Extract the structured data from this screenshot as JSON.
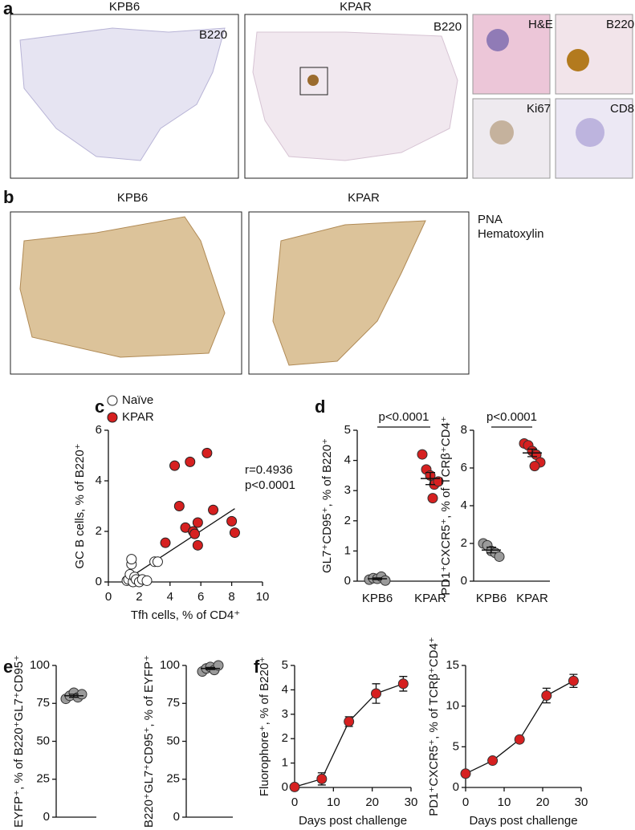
{
  "panel_labels": [
    "a",
    "b",
    "c",
    "d",
    "e",
    "f"
  ],
  "panel_a": {
    "titles": [
      "KPB6",
      "KPAR"
    ],
    "stains": [
      "B220",
      "B220"
    ],
    "insets": [
      "H&E",
      "B220",
      "Ki67",
      "CD8"
    ]
  },
  "panel_b": {
    "titles": [
      "KPB6",
      "KPAR"
    ],
    "legend": [
      {
        "text": "PNA",
        "color": "#8b4a1c"
      },
      {
        "text": "Hematoxylin",
        "color": "#4a5fc1"
      }
    ]
  },
  "chart_data": [
    {
      "type": "scatter",
      "xlabel": "Tfh cells, % of CD4⁺",
      "ylabel": "GC B cells, % of B220⁺",
      "xlim": [
        0,
        10
      ],
      "xticks": [
        0,
        2,
        4,
        6,
        8,
        10
      ],
      "ylim": [
        0,
        6
      ],
      "yticks": [
        0,
        2,
        4,
        6
      ],
      "annotations": [
        "r=0.4936",
        "p<0.0001"
      ],
      "trend_line": {
        "x": [
          1.2,
          8.2
        ],
        "y": [
          0.1,
          2.9
        ]
      },
      "series": [
        {
          "name": "Naïve",
          "color": "#ffffff",
          "x": [
            1.2,
            1.3,
            1.4,
            1.5,
            1.5,
            1.6,
            1.7,
            1.8,
            2.0,
            2.2,
            2.5,
            3.0,
            3.2
          ],
          "values": [
            0.05,
            0.1,
            0.3,
            0.7,
            0.9,
            0.0,
            0.2,
            0.1,
            0.0,
            0.1,
            0.05,
            0.8,
            0.8
          ]
        },
        {
          "name": "KPAR",
          "color": "#d62020",
          "x": [
            3.7,
            4.3,
            4.6,
            5.0,
            5.3,
            5.5,
            5.6,
            5.8,
            5.8,
            6.4,
            6.8,
            8.0,
            8.2
          ],
          "values": [
            1.55,
            4.6,
            3.0,
            2.15,
            4.75,
            2.0,
            1.9,
            2.35,
            1.45,
            5.1,
            2.85,
            2.4,
            1.95
          ]
        }
      ]
    },
    {
      "type": "dot",
      "ylabel": "GL7⁺CD95⁺, % of B220⁺",
      "ylim": [
        0,
        5
      ],
      "yticks": [
        0,
        1,
        2,
        3,
        4,
        5
      ],
      "annotation": "p<0.0001",
      "groups": [
        {
          "name": "KPB6",
          "color": "#9a9a9a",
          "values": [
            0.05,
            0.1,
            0.08,
            0.15,
            0.02
          ],
          "mean": 0.08,
          "sem": 0.03
        },
        {
          "name": "KPAR",
          "color": "#d62020",
          "values": [
            4.2,
            3.7,
            3.5,
            3.2,
            3.3,
            2.75
          ],
          "mean": 3.4,
          "sem": 0.2
        }
      ]
    },
    {
      "type": "dot",
      "ylabel": "PD1⁺CXCR5⁺, % of TCRβ⁺CD4⁺",
      "ylim": [
        0,
        8
      ],
      "yticks": [
        0,
        2,
        4,
        6,
        8
      ],
      "annotation": "p<0.0001",
      "groups": [
        {
          "name": "KPB6",
          "color": "#9a9a9a",
          "values": [
            2.0,
            1.9,
            1.6,
            1.5,
            1.3
          ],
          "mean": 1.65,
          "sem": 0.15
        },
        {
          "name": "KPAR",
          "color": "#d62020",
          "values": [
            7.3,
            7.2,
            6.9,
            6.7,
            6.3,
            6.1
          ],
          "mean": 6.8,
          "sem": 0.2
        }
      ]
    },
    {
      "type": "dot",
      "ylabel": "EYFP⁺, % of B220⁺GL7⁺CD95⁺",
      "ylim": [
        0,
        100
      ],
      "yticks": [
        0,
        25,
        50,
        75,
        100
      ],
      "groups": [
        {
          "color": "#9a9a9a",
          "values": [
            78,
            80,
            82,
            79,
            81
          ],
          "mean": 80,
          "sem": 1
        }
      ]
    },
    {
      "type": "dot",
      "ylabel": "B220⁺GL7⁺CD95⁺, % of EYFP⁺",
      "ylim": [
        0,
        100
      ],
      "yticks": [
        0,
        25,
        50,
        75,
        100
      ],
      "groups": [
        {
          "color": "#9a9a9a",
          "values": [
            96,
            98,
            99,
            97,
            100
          ],
          "mean": 98,
          "sem": 0.7
        }
      ]
    },
    {
      "type": "line",
      "xlabel": "Days post challenge",
      "ylabel": "Fluorophore⁺, % of B220⁺",
      "xlim": [
        0,
        30
      ],
      "xticks": [
        0,
        10,
        20,
        30
      ],
      "ylim": [
        0,
        5
      ],
      "yticks": [
        0,
        1,
        2,
        3,
        4,
        5
      ],
      "x": [
        0,
        7,
        14,
        21,
        28
      ],
      "series": [
        {
          "color": "#d62020",
          "values": [
            0.02,
            0.35,
            2.7,
            3.85,
            4.25
          ],
          "errors": [
            0.05,
            0.25,
            0.2,
            0.4,
            0.3
          ]
        }
      ]
    },
    {
      "type": "line",
      "xlabel": "Days post challenge",
      "ylabel": "PD1⁺CXCR5⁺, % of TCRβ⁺CD4⁺",
      "xlim": [
        0,
        30
      ],
      "xticks": [
        0,
        10,
        20,
        30
      ],
      "ylim": [
        0,
        15
      ],
      "yticks": [
        0,
        5,
        10,
        15
      ],
      "x": [
        0,
        7,
        14,
        21,
        28
      ],
      "series": [
        {
          "color": "#d62020",
          "values": [
            1.7,
            3.3,
            5.9,
            11.3,
            13.1
          ],
          "errors": [
            0.2,
            0.2,
            0.2,
            0.9,
            0.8
          ]
        }
      ]
    }
  ]
}
